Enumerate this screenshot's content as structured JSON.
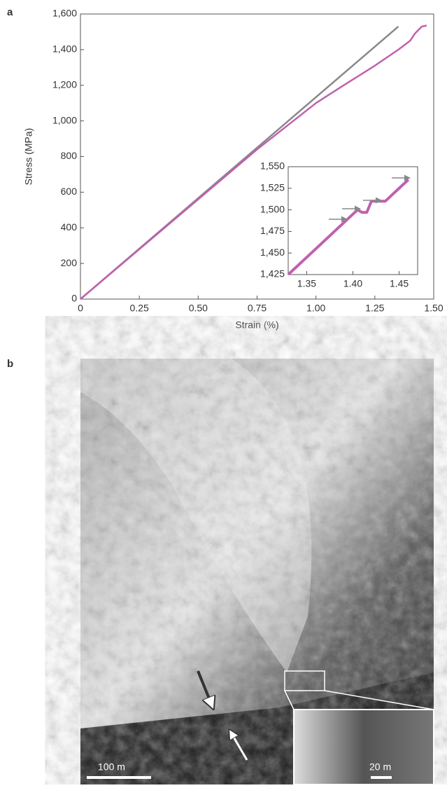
{
  "panels": [
    "a",
    "b"
  ],
  "chart_data": [
    {
      "type": "line",
      "x_label": "Strain (%)",
      "y_label": "Stress (MPa)",
      "xlim": [
        0,
        1.5
      ],
      "ylim": [
        0,
        1600
      ],
      "xticks": [
        0,
        0.25,
        {
          "value": 0.5,
          "label": "0.50"
        },
        0.75,
        {
          "value": 1,
          "label": "1.00"
        },
        1.25,
        {
          "value": 1.5,
          "label": "1.50"
        }
      ],
      "yticks": [
        0,
        200,
        400,
        600,
        800,
        {
          "value": 1000,
          "label": "1,000"
        },
        {
          "value": 1200,
          "label": "1,200"
        },
        {
          "value": 1400,
          "label": "1,400"
        },
        {
          "value": 1600,
          "label": "1,600"
        }
      ],
      "series": [
        {
          "color": "#888888",
          "x": [
            0,
            1.35
          ],
          "values": [
            0,
            1530
          ]
        },
        {
          "color": "#c060b0",
          "x": [
            0,
            0.25,
            0.5,
            0.75,
            1.0,
            1.1,
            1.25,
            1.35,
            1.4,
            1.42,
            1.45,
            1.47
          ],
          "values": [
            0,
            280,
            560,
            840,
            1100,
            1185,
            1310,
            1400,
            1450,
            1490,
            1530,
            1535
          ]
        }
      ]
    },
    {
      "type": "line",
      "xlim": [
        1.33,
        1.47
      ],
      "ylim": [
        1425,
        1550
      ],
      "xticks": [
        1.35,
        {
          "value": 1.4,
          "label": "1.40"
        },
        1.45
      ],
      "yticks": [
        {
          "value": 1425,
          "label": "1,425"
        },
        {
          "value": 1450,
          "label": "1,450"
        },
        {
          "value": 1475,
          "label": "1,475"
        },
        {
          "value": 1500,
          "label": "1,500"
        },
        {
          "value": 1525,
          "label": "1,525"
        },
        {
          "value": 1550,
          "label": "1,550"
        }
      ],
      "series": [
        {
          "color": "#c060b0",
          "x": [
            1.33,
            1.36,
            1.39,
            1.405,
            1.41,
            1.415,
            1.42,
            1.435,
            1.445,
            1.455,
            1.46
          ],
          "values": [
            1425,
            1455,
            1485,
            1500,
            1497,
            1497,
            1510,
            1510,
            1520,
            1530,
            1535
          ]
        }
      ]
    }
  ],
  "image": {
    "scale_bars": [
      "100 m",
      "20 m"
    ]
  }
}
